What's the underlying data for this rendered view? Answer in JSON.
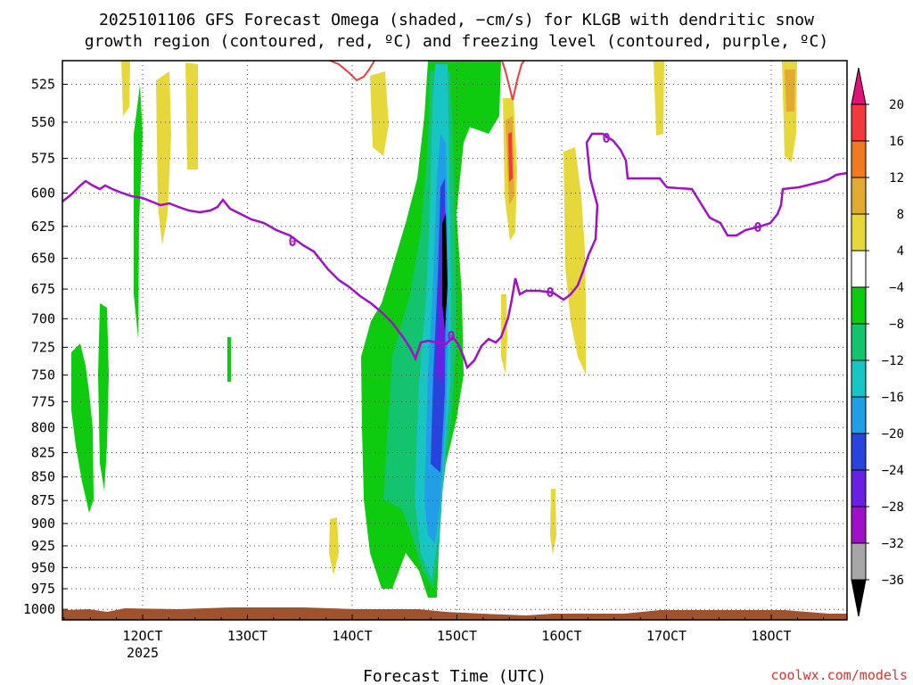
{
  "chart_data": {
    "type": "heatmap",
    "title_line1": "2025101106 GFS Forecast Omega (shaded, −cm/s) for KLGB with dendritic snow",
    "title_line2": "growth region (contoured, red, ºC) and freezing level (contoured, purple, ºC)",
    "xlabel": "Forecast Time (UTC)",
    "x_ticks": [
      "12OCT",
      "13OCT",
      "14OCT",
      "15OCT",
      "16OCT",
      "17OCT",
      "18OCT"
    ],
    "x_tick_sublabel": "2025",
    "y_ticks": [
      525,
      550,
      575,
      600,
      625,
      650,
      675,
      700,
      725,
      750,
      775,
      800,
      825,
      850,
      875,
      900,
      925,
      950,
      975,
      1000
    ],
    "colorbar_labels": [
      "20",
      "16",
      "12",
      "8",
      "4",
      "−4",
      "−8",
      "−12",
      "−16",
      "−20",
      "−24",
      "−28",
      "−32",
      "−36"
    ],
    "colorbar_colors": [
      "#f23a3a",
      "#f07a22",
      "#e2aa30",
      "#e6d83a",
      "#ffffff",
      "#0fcb0f",
      "#14c36e",
      "#19c4c4",
      "#229ee8",
      "#2844dc",
      "#6a20e0",
      "#a010c8",
      "#a6a6a6"
    ],
    "colorbar_top_color": "#e0127a",
    "colorbar_bottom_color": "#000000",
    "freezing_level_label": "0",
    "freezing_level_color": "#a010c8",
    "dgz_color": "#f23a3a",
    "terrain_color": "#a0522d",
    "grid": true,
    "credit": "coolwx.com/models"
  }
}
